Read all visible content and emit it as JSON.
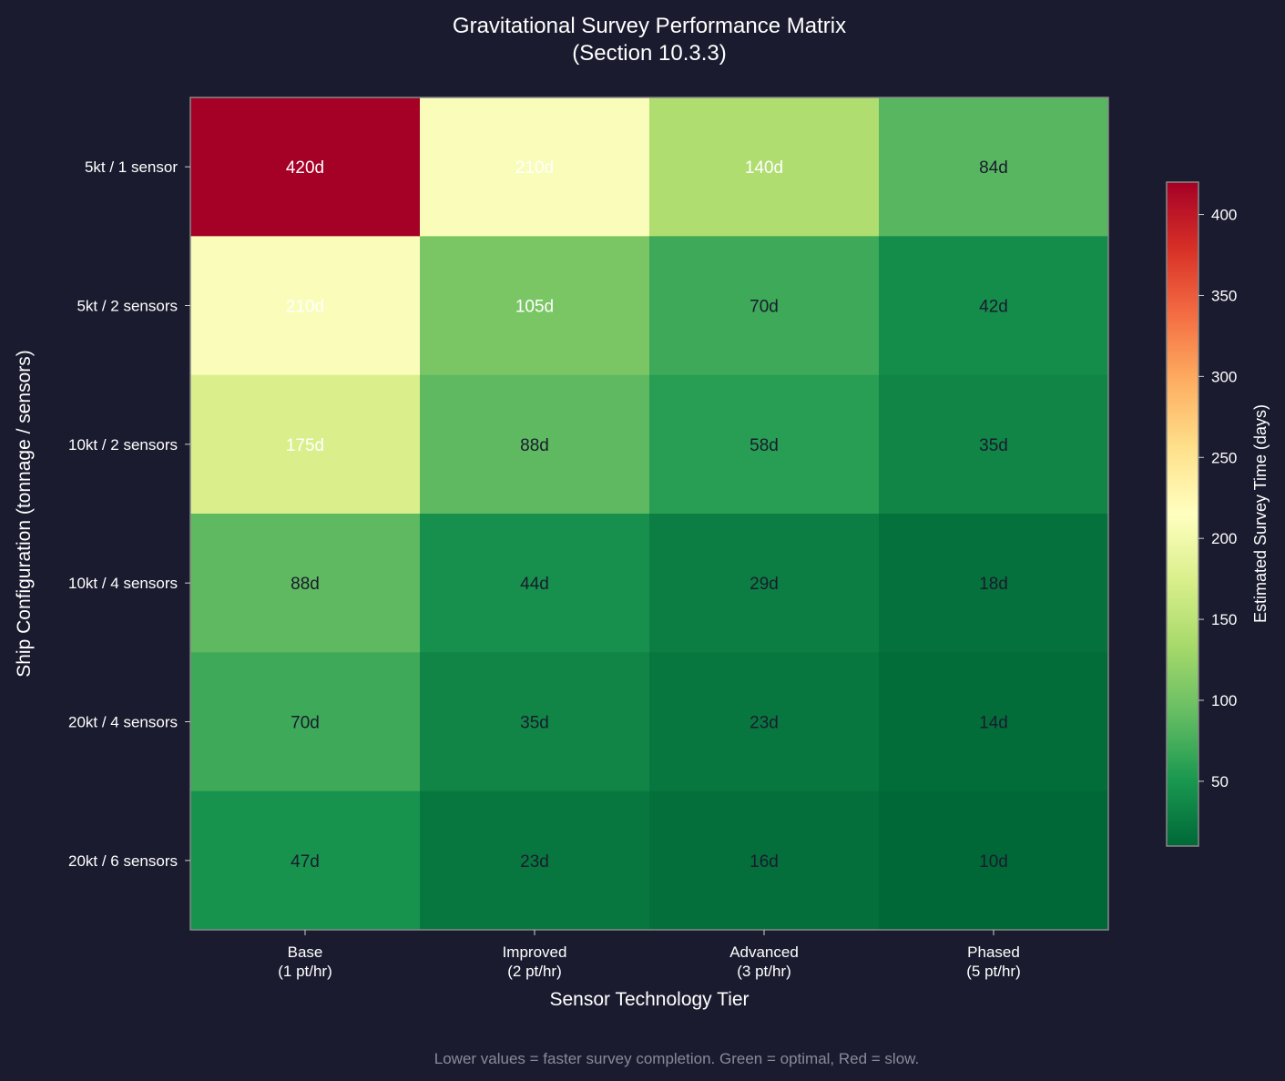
{
  "chart_data": {
    "type": "heatmap",
    "title": "Gravitational Survey Performance Matrix",
    "subtitle": "(Section 10.3.3)",
    "xlabel": "Sensor Technology Tier",
    "ylabel": "Ship Configuration (tonnage / sensors)",
    "x_categories": [
      [
        "Base",
        "(1 pt/hr)"
      ],
      [
        "Improved",
        "(2 pt/hr)"
      ],
      [
        "Advanced",
        "(3 pt/hr)"
      ],
      [
        "Phased",
        "(5 pt/hr)"
      ]
    ],
    "y_categories": [
      "5kt / 1 sensor",
      "5kt / 2 sensors",
      "10kt / 2 sensors",
      "10kt / 4 sensors",
      "20kt / 4 sensors",
      "20kt / 6 sensors"
    ],
    "values": [
      [
        420,
        210,
        140,
        84
      ],
      [
        210,
        105,
        70,
        42
      ],
      [
        175,
        88,
        58,
        35
      ],
      [
        88,
        44,
        29,
        18
      ],
      [
        70,
        35,
        23,
        14
      ],
      [
        47,
        23,
        16,
        10
      ]
    ],
    "value_suffix": "d",
    "colormap": "RdYlGn_r",
    "colorbar": {
      "label": "Estimated Survey Time (days)",
      "range": [
        10,
        420
      ],
      "ticks": [
        50,
        100,
        150,
        200,
        250,
        300,
        350,
        400
      ]
    },
    "footnote": "Lower values = faster survey completion. Green = optimal, Red = slow."
  }
}
